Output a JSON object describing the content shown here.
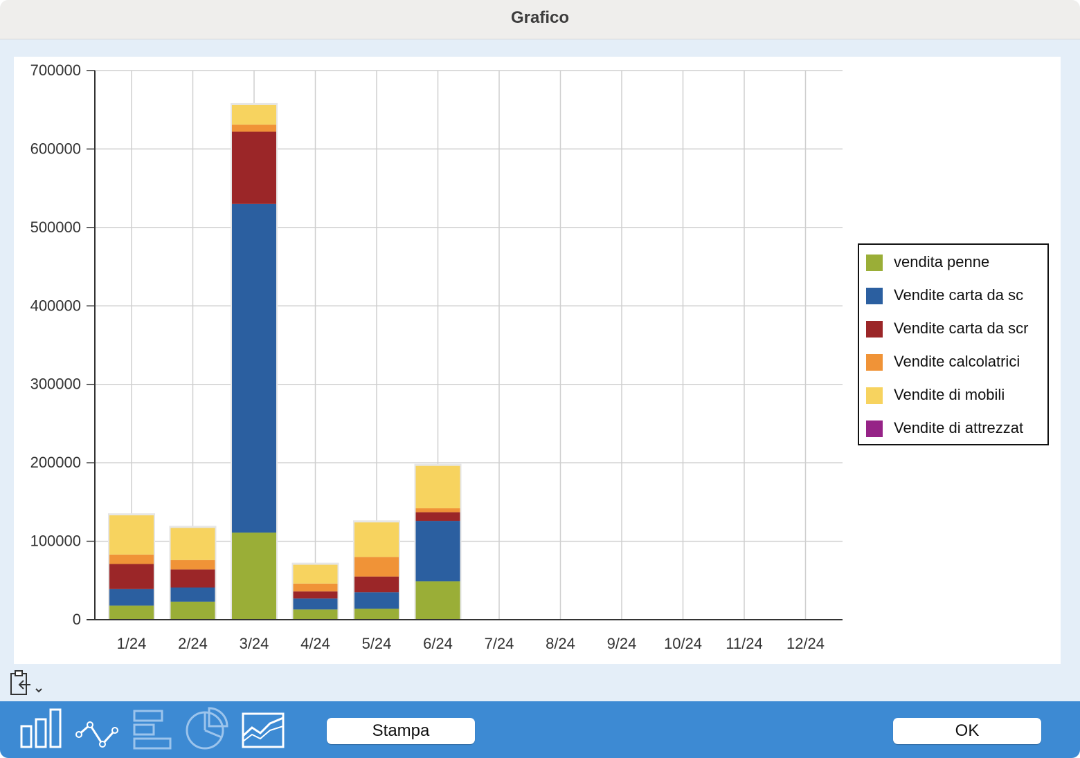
{
  "window": {
    "title": "Grafico"
  },
  "chart_data": {
    "type": "bar",
    "stacked": true,
    "categories": [
      "1/24",
      "2/24",
      "3/24",
      "4/24",
      "5/24",
      "6/24",
      "7/24",
      "8/24",
      "9/24",
      "10/24",
      "11/24",
      "12/24"
    ],
    "series": [
      {
        "name": "vendita penne",
        "color": "#9aae37",
        "values": [
          18000,
          23000,
          111000,
          13000,
          14000,
          49000,
          0,
          0,
          0,
          0,
          0,
          0
        ]
      },
      {
        "name": "Vendite carta da sc",
        "color": "#2b5fa0",
        "values": [
          21000,
          18000,
          419000,
          14000,
          21000,
          77000,
          0,
          0,
          0,
          0,
          0,
          0
        ]
      },
      {
        "name": "Vendite carta da scr",
        "color": "#9b2628",
        "values": [
          32000,
          23000,
          92000,
          9000,
          20000,
          11000,
          0,
          0,
          0,
          0,
          0,
          0
        ]
      },
      {
        "name": "Vendite calcolatrici",
        "color": "#f09337",
        "values": [
          12000,
          12000,
          9000,
          10000,
          25000,
          5000,
          0,
          0,
          0,
          0,
          0,
          0
        ]
      },
      {
        "name": "Vendite di mobili",
        "color": "#f7d35f",
        "values": [
          50000,
          41000,
          25000,
          24000,
          44000,
          54000,
          0,
          0,
          0,
          0,
          0,
          0
        ]
      },
      {
        "name": "Vendite di attrezzat",
        "color": "#962387",
        "values": [
          0,
          0,
          0,
          0,
          0,
          0,
          0,
          0,
          0,
          0,
          0,
          0
        ]
      }
    ],
    "yticks": [
      "700000",
      "600000",
      "500000",
      "400000",
      "300000",
      "200000",
      "100000",
      "0"
    ],
    "ylim": [
      0,
      700000
    ],
    "grid": true,
    "legend_position": "right"
  },
  "toolbar": {
    "icons": [
      "bar-chart-icon",
      "line-chart-icon",
      "horizontal-bar-chart-icon",
      "pie-chart-icon",
      "area-chart-icon"
    ],
    "print_label": "Stampa",
    "ok_label": "OK"
  }
}
